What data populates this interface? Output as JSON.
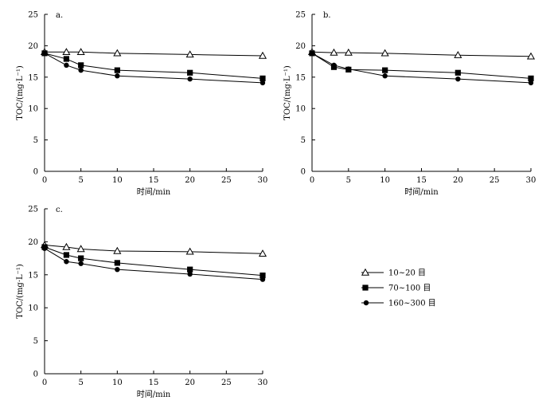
{
  "chart_data": [
    {
      "type": "line",
      "title": "a.",
      "xlabel": "时间/min",
      "ylabel": "TOC/(mg·L⁻¹)",
      "xlim": [
        0,
        30
      ],
      "ylim": [
        0,
        25
      ],
      "xticks": [
        0,
        5,
        10,
        15,
        20,
        25,
        30
      ],
      "yticks": [
        0,
        5,
        10,
        15,
        20,
        25
      ],
      "x": [
        0,
        3,
        5,
        10,
        20,
        30
      ],
      "series": [
        {
          "name": "10~20 目",
          "marker": "triangle",
          "values": [
            19.0,
            19.0,
            19.0,
            18.8,
            18.6,
            18.4
          ]
        },
        {
          "name": "70~100 目",
          "marker": "square",
          "values": [
            18.8,
            17.9,
            16.9,
            16.1,
            15.7,
            14.8
          ]
        },
        {
          "name": "160~300 目",
          "marker": "circle",
          "values": [
            18.8,
            16.9,
            16.1,
            15.2,
            14.7,
            14.1
          ]
        }
      ]
    },
    {
      "type": "line",
      "title": "b.",
      "xlabel": "时间/min",
      "ylabel": "TOC/(mg·L⁻¹)",
      "xlim": [
        0,
        30
      ],
      "ylim": [
        0,
        25
      ],
      "xticks": [
        0,
        5,
        10,
        15,
        20,
        25,
        30
      ],
      "yticks": [
        0,
        5,
        10,
        15,
        20,
        25
      ],
      "x": [
        0,
        3,
        5,
        10,
        20,
        30
      ],
      "series": [
        {
          "name": "10~20 目",
          "marker": "triangle",
          "values": [
            19.0,
            18.9,
            18.9,
            18.8,
            18.5,
            18.3
          ]
        },
        {
          "name": "70~100 目",
          "marker": "square",
          "values": [
            18.8,
            16.6,
            16.2,
            16.1,
            15.7,
            14.8
          ]
        },
        {
          "name": "160~300 目",
          "marker": "circle",
          "values": [
            18.8,
            16.9,
            16.3,
            15.2,
            14.7,
            14.1
          ]
        }
      ]
    },
    {
      "type": "line",
      "title": "c.",
      "xlabel": "时间/min",
      "ylabel": "TOC/(mg·L⁻¹)",
      "xlim": [
        0,
        30
      ],
      "ylim": [
        0,
        25
      ],
      "xticks": [
        0,
        5,
        10,
        15,
        20,
        25,
        30
      ],
      "yticks": [
        0,
        5,
        10,
        15,
        20,
        25
      ],
      "x": [
        0,
        3,
        5,
        10,
        20,
        30
      ],
      "series": [
        {
          "name": "10~20 目",
          "marker": "triangle",
          "values": [
            19.5,
            19.2,
            18.9,
            18.6,
            18.5,
            18.2
          ]
        },
        {
          "name": "70~100 目",
          "marker": "square",
          "values": [
            19.2,
            18.0,
            17.5,
            16.8,
            15.8,
            14.9
          ]
        },
        {
          "name": "160~300 目",
          "marker": "circle",
          "values": [
            19.0,
            17.0,
            16.7,
            15.8,
            15.1,
            14.3
          ]
        }
      ]
    }
  ],
  "legend": {
    "items": [
      {
        "label": "10~20 目",
        "marker": "triangle"
      },
      {
        "label": "70~100 目",
        "marker": "square"
      },
      {
        "label": "160~300 目",
        "marker": "circle"
      }
    ]
  }
}
